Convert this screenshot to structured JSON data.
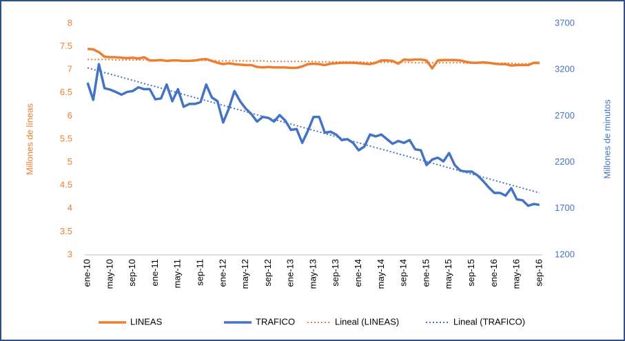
{
  "chart_data": {
    "type": "line",
    "categories": [
      "ene-10",
      null,
      null,
      null,
      "may-10",
      null,
      null,
      null,
      "sep-10",
      null,
      null,
      null,
      "ene-11",
      null,
      null,
      null,
      "may-11",
      null,
      null,
      null,
      "sep-11",
      null,
      null,
      null,
      "ene-12",
      null,
      null,
      null,
      "may-12",
      null,
      null,
      null,
      "sep-12",
      null,
      null,
      null,
      "ene-13",
      null,
      null,
      null,
      "may-13",
      null,
      null,
      null,
      "sep-13",
      null,
      null,
      null,
      "ene-14",
      null,
      null,
      null,
      "may-14",
      null,
      null,
      null,
      "sep-14",
      null,
      null,
      null,
      "ene-15",
      null,
      null,
      null,
      "may-15",
      null,
      null,
      null,
      "sep-15",
      null,
      null,
      null,
      "ene-16",
      null,
      null,
      null,
      "may-16",
      null,
      null,
      null,
      "sep-16"
    ],
    "ylabel": "Millones de líneas",
    "y2label": "Millones de minutos",
    "ylim": [
      3,
      8
    ],
    "yticks": [
      3,
      3.5,
      4,
      4.5,
      5,
      5.5,
      6,
      6.5,
      7,
      7.5,
      8
    ],
    "y2lim": [
      1200,
      3700
    ],
    "y2ticks": [
      1200,
      1700,
      2200,
      2700,
      3200,
      3700
    ],
    "ycolor": "#ED7D31",
    "y2color": "#4472C4",
    "grid": false,
    "legend": "bottom",
    "series": [
      {
        "name": "LINEAS",
        "color": "#ED7D31",
        "style": "solid",
        "values": [
          7.45,
          7.44,
          7.38,
          7.28,
          7.27,
          7.27,
          7.26,
          7.25,
          7.26,
          7.24,
          7.27,
          7.2,
          7.2,
          7.21,
          7.19,
          7.2,
          7.2,
          7.19,
          7.19,
          7.2,
          7.22,
          7.23,
          7.19,
          7.15,
          7.12,
          7.14,
          7.12,
          7.11,
          7.1,
          7.1,
          7.06,
          7.05,
          7.06,
          7.05,
          7.05,
          7.05,
          7.04,
          7.04,
          7.07,
          7.12,
          7.13,
          7.12,
          7.1,
          7.13,
          7.14,
          7.15,
          7.15,
          7.15,
          7.14,
          7.13,
          7.12,
          7.15,
          7.2,
          7.2,
          7.19,
          7.13,
          7.22,
          7.21,
          7.22,
          7.22,
          7.2,
          7.03,
          7.2,
          7.21,
          7.21,
          7.21,
          7.2,
          7.17,
          7.15,
          7.15,
          7.16,
          7.15,
          7.13,
          7.12,
          7.12,
          7.09,
          7.1,
          7.1,
          7.1,
          7.15,
          7.15
        ]
      },
      {
        "name": "TRAFICO",
        "color": "#4472C4",
        "style": "solid",
        "axis": "y2",
        "values": [
          3060,
          2874,
          3260,
          3000,
          2985,
          2960,
          2930,
          2960,
          2970,
          3010,
          2990,
          2990,
          2880,
          2890,
          3040,
          2860,
          2990,
          2800,
          2830,
          2830,
          2850,
          3040,
          2900,
          2860,
          2630,
          2780,
          2970,
          2860,
          2780,
          2720,
          2640,
          2690,
          2680,
          2640,
          2710,
          2650,
          2550,
          2560,
          2410,
          2540,
          2690,
          2690,
          2520,
          2530,
          2500,
          2440,
          2450,
          2410,
          2330,
          2370,
          2500,
          2480,
          2500,
          2450,
          2400,
          2430,
          2410,
          2440,
          2340,
          2330,
          2170,
          2230,
          2250,
          2210,
          2300,
          2170,
          2110,
          2100,
          2100,
          2060,
          2000,
          1930,
          1870,
          1870,
          1840,
          1920,
          1800,
          1790,
          1730,
          1750,
          1740
        ]
      },
      {
        "name": "Lineal (LINEAS)",
        "color": "#ED7D31",
        "style": "dotted",
        "values": [
          7.22,
          7.22,
          7.22,
          7.22,
          7.22,
          7.21,
          7.21,
          7.21,
          7.21,
          7.21,
          7.21,
          7.21,
          7.21,
          7.21,
          7.2,
          7.2,
          7.2,
          7.2,
          7.2,
          7.2,
          7.2,
          7.2,
          7.2,
          7.19,
          7.19,
          7.19,
          7.19,
          7.19,
          7.19,
          7.19,
          7.19,
          7.19,
          7.18,
          7.18,
          7.18,
          7.18,
          7.18,
          7.18,
          7.18,
          7.18,
          7.18,
          7.17,
          7.17,
          7.17,
          7.17,
          7.17,
          7.17,
          7.17,
          7.17,
          7.16,
          7.16,
          7.16,
          7.16,
          7.16,
          7.16,
          7.16,
          7.16,
          7.16,
          7.15,
          7.15,
          7.15,
          7.15,
          7.15,
          7.15,
          7.15,
          7.15,
          7.15,
          7.14,
          7.14,
          7.14,
          7.14,
          7.14,
          7.14,
          7.14,
          7.14,
          7.14,
          7.13,
          7.13,
          7.13,
          7.13,
          7.13
        ]
      },
      {
        "name": "Lineal (TRAFICO)",
        "color": "#4472C4",
        "style": "dotted",
        "axis": "y2",
        "values": [
          3220,
          3203,
          3186,
          3169,
          3153,
          3136,
          3119,
          3102,
          3085,
          3068,
          3051,
          3034,
          3018,
          3001,
          2984,
          2967,
          2950,
          2933,
          2916,
          2899,
          2883,
          2866,
          2849,
          2832,
          2815,
          2798,
          2781,
          2764,
          2748,
          2731,
          2714,
          2697,
          2680,
          2663,
          2646,
          2629,
          2613,
          2596,
          2579,
          2562,
          2545,
          2528,
          2511,
          2494,
          2478,
          2461,
          2444,
          2427,
          2410,
          2393,
          2376,
          2359,
          2343,
          2326,
          2309,
          2292,
          2275,
          2258,
          2241,
          2224,
          2208,
          2191,
          2174,
          2157,
          2140,
          2123,
          2106,
          2089,
          2073,
          2056,
          2039,
          2022,
          2005,
          1988,
          1971,
          1954,
          1938,
          1921,
          1904,
          1887,
          1870
        ]
      }
    ]
  }
}
